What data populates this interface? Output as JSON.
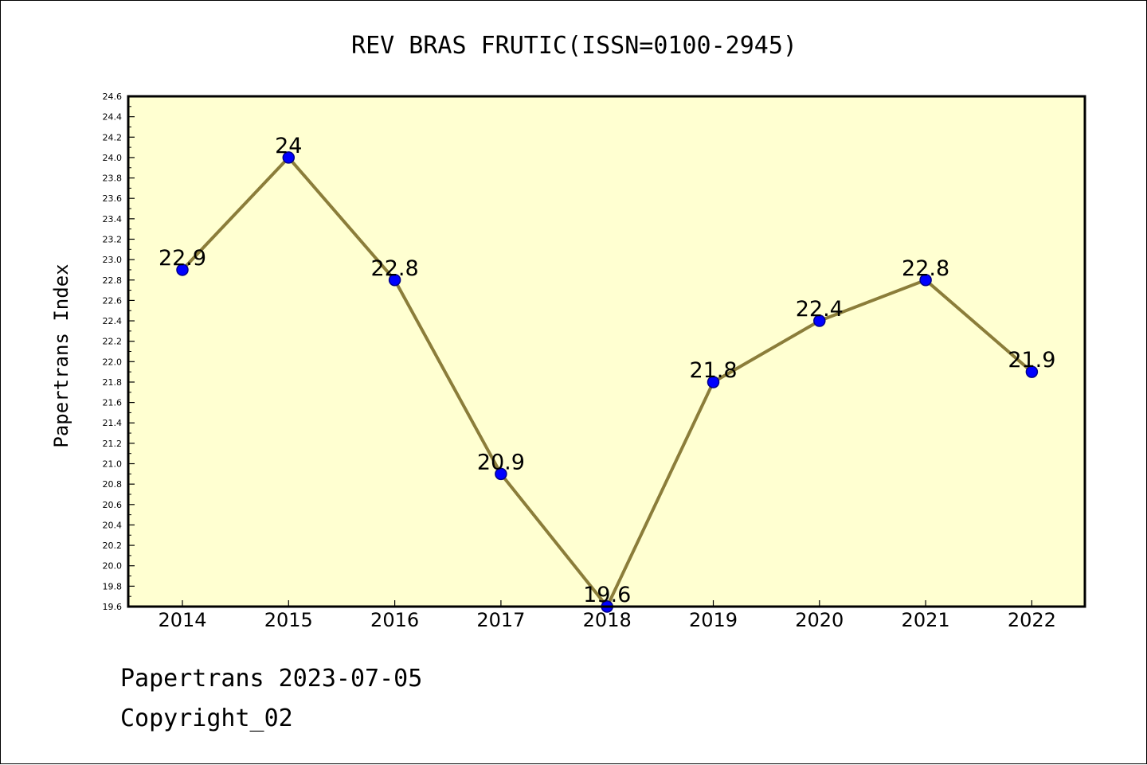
{
  "chart_data": {
    "type": "line",
    "title": "REV BRAS FRUTIC(ISSN=0100-2945)",
    "xlabel": "",
    "ylabel": "Papertrans Index",
    "categories": [
      "2014",
      "2015",
      "2016",
      "2017",
      "2018",
      "2019",
      "2020",
      "2021",
      "2022"
    ],
    "values": [
      22.9,
      24.0,
      22.8,
      20.9,
      19.6,
      21.8,
      22.4,
      22.8,
      21.9
    ],
    "data_labels": [
      "22.9",
      "24",
      "22.8",
      "20.9",
      "19.6",
      "21.8",
      "22.4",
      "22.8",
      "21.9"
    ],
    "ylim": [
      19.6,
      24.6
    ],
    "yticks": [
      "19.6",
      "19.8",
      "20.0",
      "20.2",
      "20.4",
      "20.6",
      "20.8",
      "21.0",
      "21.2",
      "21.4",
      "21.6",
      "21.8",
      "22.0",
      "22.2",
      "22.4",
      "22.6",
      "22.8",
      "23.0",
      "23.2",
      "23.4",
      "23.6",
      "23.8",
      "24.0",
      "24.2",
      "24.4",
      "24.6"
    ],
    "grid": false,
    "colors": {
      "plot_background": "#ffffd1",
      "line": "#8b7d3a",
      "marker_fill": "#0000ff",
      "marker_edge": "#00008b",
      "axes": "#000000"
    }
  },
  "footer": {
    "line1": "Papertrans 2023-07-05",
    "line2": "Copyright_02"
  }
}
